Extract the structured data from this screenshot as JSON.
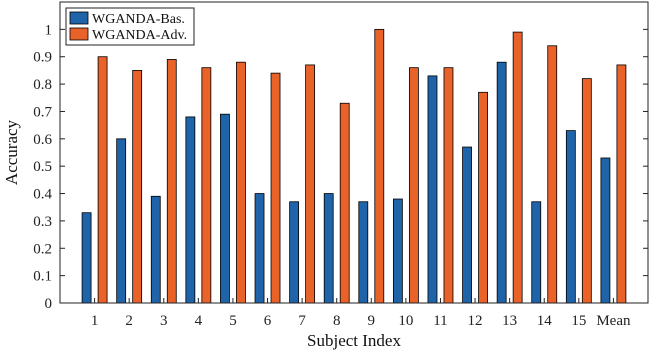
{
  "chart_data": {
    "type": "bar",
    "title": "",
    "xlabel": "Subject Index",
    "ylabel": "Accuracy",
    "ylim": [
      0,
      1.1
    ],
    "yticks": [
      0,
      0.1,
      0.2,
      0.3,
      0.4,
      0.5,
      0.6,
      0.7,
      0.8,
      0.9,
      1
    ],
    "grid": false,
    "legend_position": "top-left",
    "categories": [
      "1",
      "2",
      "3",
      "4",
      "5",
      "6",
      "7",
      "8",
      "9",
      "10",
      "11",
      "12",
      "13",
      "14",
      "15",
      "Mean"
    ],
    "series": [
      {
        "name": "WGANDA-Bas.",
        "color": "#1f64a8",
        "values": [
          0.33,
          0.6,
          0.39,
          0.68,
          0.69,
          0.4,
          0.37,
          0.4,
          0.37,
          0.38,
          0.83,
          0.57,
          0.88,
          0.37,
          0.63,
          0.53
        ]
      },
      {
        "name": "WGANDA-Adv.",
        "color": "#e8622a",
        "values": [
          0.9,
          0.85,
          0.89,
          0.86,
          0.88,
          0.84,
          0.87,
          0.73,
          1.0,
          0.86,
          0.86,
          0.77,
          0.99,
          0.94,
          0.82,
          0.87
        ]
      }
    ]
  }
}
